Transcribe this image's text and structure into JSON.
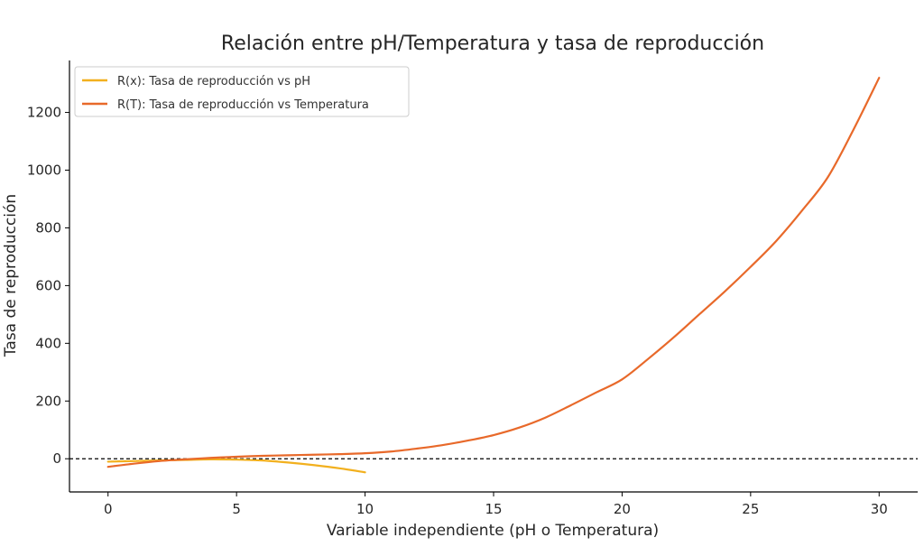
{
  "chart_data": {
    "type": "line",
    "title": "Relación entre pH/Temperatura y tasa de reproducción",
    "xlabel": "Variable independiente (pH o Temperatura)",
    "ylabel": "Tasa de reproducción",
    "xlim": [
      -1.5,
      31.5
    ],
    "ylim": [
      -115,
      1380
    ],
    "xticks": [
      0,
      5,
      10,
      15,
      20,
      25,
      30
    ],
    "xtick_labels": [
      "0",
      "5",
      "10",
      "15",
      "20",
      "25",
      "30"
    ],
    "yticks": [
      0,
      200,
      400,
      600,
      800,
      1000,
      1200
    ],
    "ytick_labels": [
      "0",
      "200",
      "400",
      "600",
      "800",
      "1000",
      "1200"
    ],
    "reference_line": {
      "y": 0,
      "style": "dashed",
      "color": "#000000"
    },
    "grid": false,
    "legend_position": "top-left",
    "series": [
      {
        "name": "R(x): Tasa de reproducción vs pH",
        "color": "#f2b01e",
        "x": [
          0,
          1,
          2,
          3,
          4,
          5,
          6,
          7,
          8,
          9,
          10
        ],
        "y": [
          -10,
          -8,
          -6,
          -4,
          -2,
          -3,
          -6,
          -13,
          -22,
          -33,
          -47
        ]
      },
      {
        "name": "R(T): Tasa de reproducción vs Temperatura",
        "color": "#e8692a",
        "x": [
          0,
          1,
          2,
          3,
          4,
          5,
          6,
          7,
          8,
          9,
          10,
          11,
          12,
          13,
          14,
          15,
          16,
          17,
          18,
          19,
          20,
          21,
          22,
          23,
          24,
          25,
          26,
          27,
          28,
          29,
          30
        ],
        "y": [
          -28,
          -17,
          -8,
          -2,
          3,
          7,
          10,
          12,
          14,
          16,
          19,
          25,
          35,
          47,
          63,
          82,
          108,
          142,
          185,
          230,
          275,
          345,
          420,
          500,
          580,
          665,
          755,
          860,
          975,
          1140,
          1320
        ]
      }
    ]
  }
}
